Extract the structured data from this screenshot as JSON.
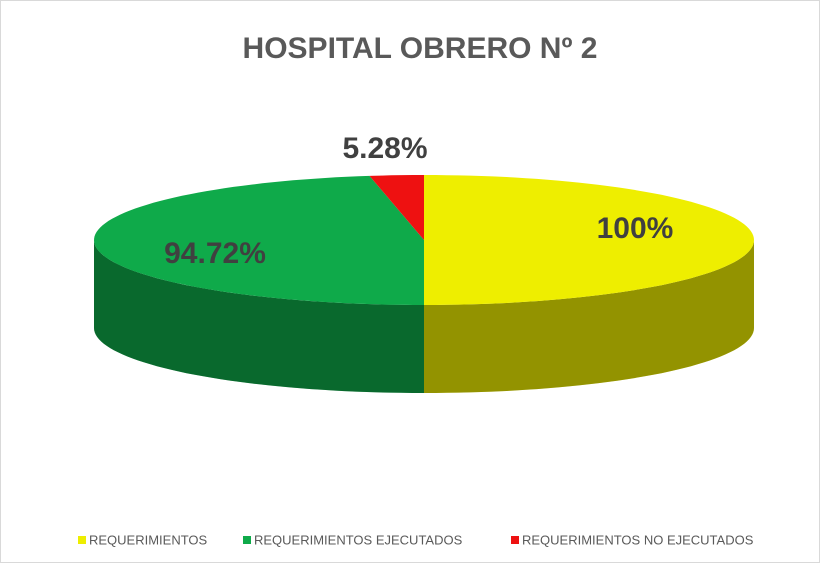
{
  "chart_data": {
    "type": "pie3d",
    "title": "HOSPITAL OBRERO Nº 2",
    "categories": [
      "REQUERIMIENTOS",
      "REQUERIMIENTOS EJECUTADOS",
      "REQUERIMIENTOS NO EJECUTADOS"
    ],
    "values": [
      100,
      94.72,
      5.28
    ],
    "value_labels": [
      "100%",
      "94.72%",
      "5.28%"
    ],
    "colors": [
      "#eeee00",
      "#0faa4a",
      "#ee1111"
    ],
    "legend": "bottom"
  }
}
